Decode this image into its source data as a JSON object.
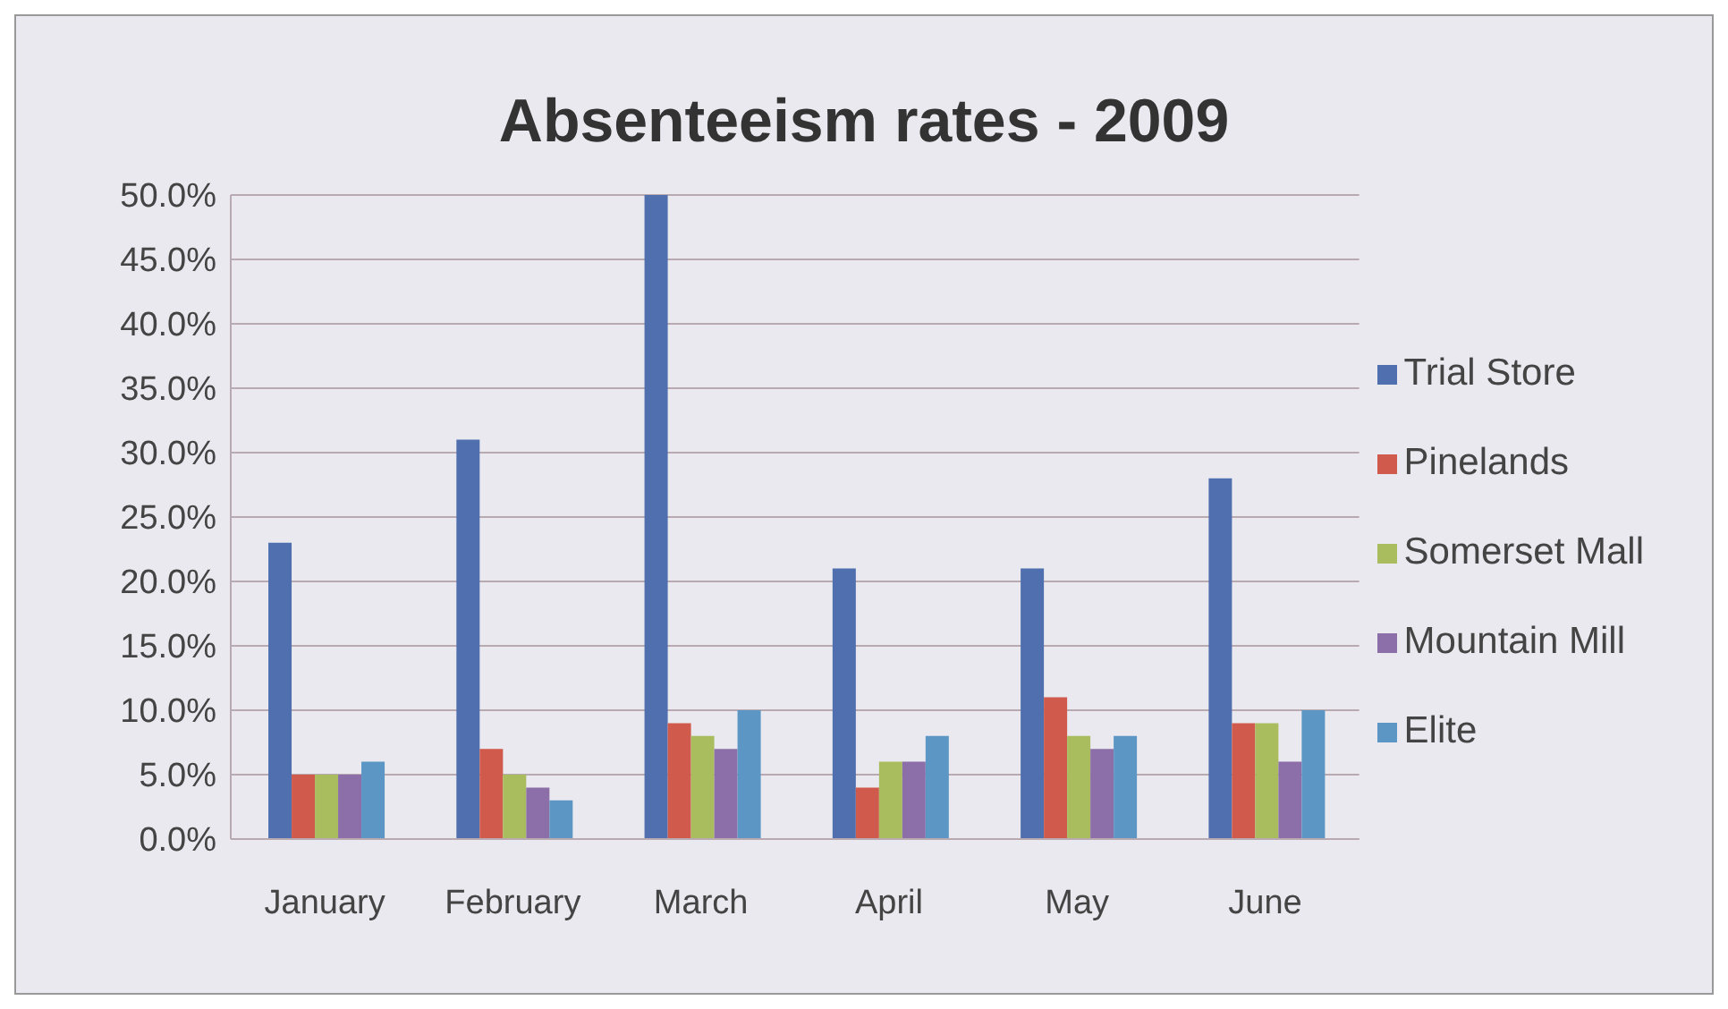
{
  "chart_data": {
    "type": "bar",
    "title": "Absenteeism rates - 2009",
    "categories": [
      "January",
      "February",
      "March",
      "April",
      "May",
      "June"
    ],
    "series": [
      {
        "name": "Trial Store",
        "color": "#4f6fae",
        "values": [
          23,
          31,
          50,
          21,
          21,
          28
        ]
      },
      {
        "name": "Pinelands",
        "color": "#d05a4b",
        "values": [
          5,
          7,
          9,
          4,
          11,
          9
        ]
      },
      {
        "name": "Somerset Mall",
        "color": "#a9bd5f",
        "values": [
          5,
          5,
          8,
          6,
          8,
          9
        ]
      },
      {
        "name": "Mountain Mill",
        "color": "#8c6fa8",
        "values": [
          5,
          4,
          7,
          6,
          7,
          6
        ]
      },
      {
        "name": "Elite",
        "color": "#5b96c4",
        "values": [
          6,
          3,
          10,
          8,
          8,
          10
        ]
      }
    ],
    "ylim": [
      0,
      50
    ],
    "yticks": [
      {
        "value": 0,
        "label": "0.0%"
      },
      {
        "value": 5,
        "label": "5.0%"
      },
      {
        "value": 10,
        "label": "10.0%"
      },
      {
        "value": 15,
        "label": "15.0%"
      },
      {
        "value": 20,
        "label": "20.0%"
      },
      {
        "value": 25,
        "label": "25.0%"
      },
      {
        "value": 30,
        "label": "30.0%"
      },
      {
        "value": 35,
        "label": "35.0%"
      },
      {
        "value": 40,
        "label": "40.0%"
      },
      {
        "value": 45,
        "label": "45.0%"
      },
      {
        "value": 50,
        "label": "50.0%"
      }
    ],
    "grid": "y",
    "legend": "right"
  }
}
